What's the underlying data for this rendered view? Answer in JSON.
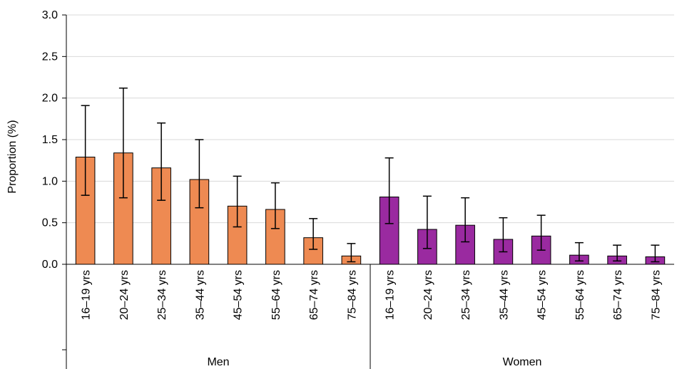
{
  "chart_data": {
    "type": "bar",
    "title": "",
    "ylabel": "Proportion (%)",
    "ylim": [
      0,
      3.0
    ],
    "yticks": [
      "0.0",
      "0.5",
      "1.0",
      "1.5",
      "2.0",
      "2.5",
      "3.0"
    ],
    "grid": true,
    "error_bars": true,
    "groups": [
      {
        "name": "Men",
        "color": "#EE8A52",
        "categories": [
          "16–19 yrs",
          "20–24 yrs",
          "25–34 yrs",
          "35–44 yrs",
          "45–54 yrs",
          "55–64 yrs",
          "65–74 yrs",
          "75–84 yrs"
        ],
        "values": [
          1.29,
          1.34,
          1.16,
          1.02,
          0.7,
          0.66,
          0.32,
          0.1
        ],
        "lower": [
          0.83,
          0.8,
          0.77,
          0.68,
          0.45,
          0.43,
          0.18,
          0.03
        ],
        "upper": [
          1.91,
          2.12,
          1.7,
          1.5,
          1.06,
          0.98,
          0.55,
          0.25
        ]
      },
      {
        "name": "Women",
        "color": "#9A2AA0",
        "categories": [
          "16–19 yrs",
          "20–24 yrs",
          "25–34 yrs",
          "35–44 yrs",
          "45–54 yrs",
          "55–64 yrs",
          "65–74 yrs",
          "75–84 yrs"
        ],
        "values": [
          0.81,
          0.42,
          0.47,
          0.3,
          0.34,
          0.11,
          0.1,
          0.09
        ],
        "lower": [
          0.49,
          0.19,
          0.27,
          0.15,
          0.17,
          0.04,
          0.04,
          0.03
        ],
        "upper": [
          1.28,
          0.82,
          0.8,
          0.56,
          0.59,
          0.26,
          0.23,
          0.23
        ]
      }
    ]
  }
}
